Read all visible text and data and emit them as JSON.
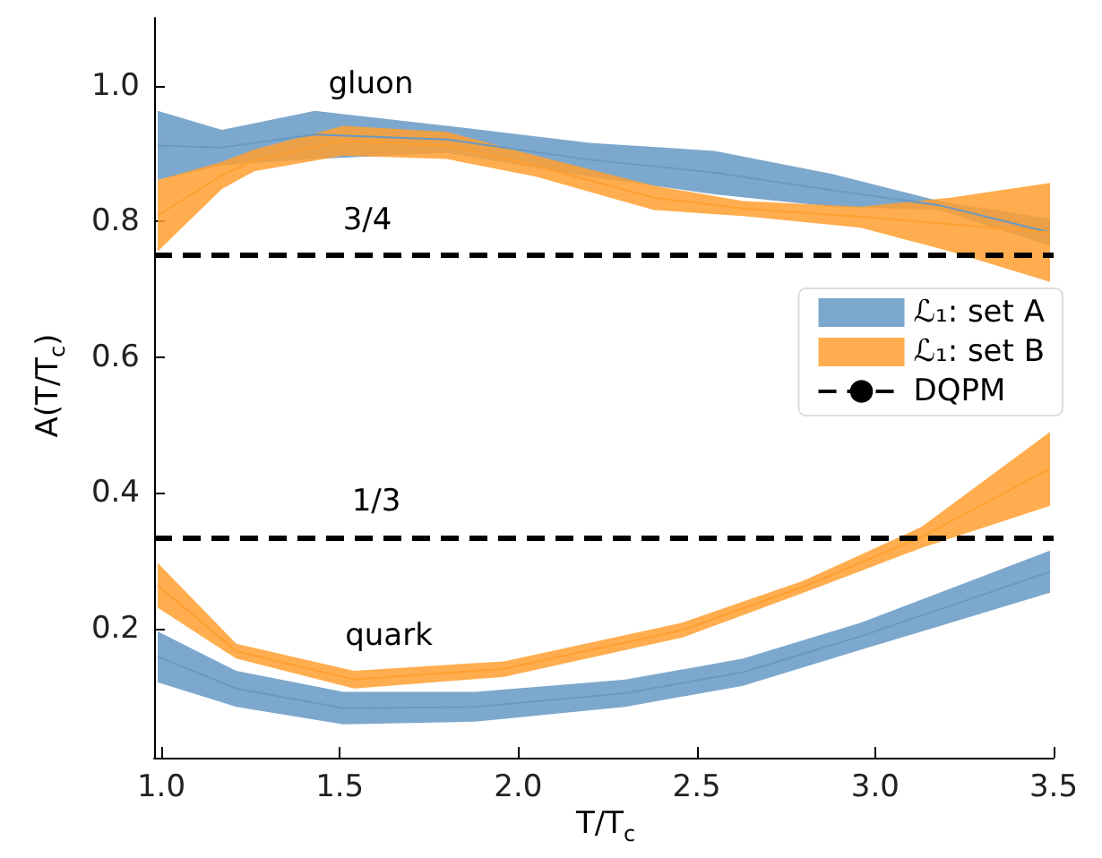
{
  "chart_data": {
    "type": "line",
    "xlabel": "T/T$_{c}$",
    "ylabel": "A(T/T$_{c}$)",
    "xlim": [
      0.98,
      3.5
    ],
    "ylim": [
      0.01,
      1.1
    ],
    "xticks": [
      {
        "value": 1,
        "label": "1.0"
      },
      1.5,
      {
        "value": 2,
        "label": "2.0"
      },
      2.5,
      {
        "value": 3,
        "label": "3.0"
      },
      3.5
    ],
    "yticks": [
      0.2,
      0.4,
      0.6,
      0.8,
      {
        "value": 1,
        "label": "1.0"
      }
    ],
    "grid": false,
    "legend": "right",
    "series": [
      {
        "name": "ℒ₁: set A",
        "color": "#6699c4",
        "x": [
          0.99,
          1.17,
          1.43,
          1.8,
          2.2,
          2.55,
          2.88,
          3.18,
          3.49
        ],
        "lower": [
          0.861,
          0.883,
          0.892,
          0.901,
          0.866,
          0.84,
          0.822,
          0.817,
          0.764
        ],
        "upper": [
          0.963,
          0.935,
          0.963,
          0.941,
          0.916,
          0.904,
          0.87,
          0.83,
          0.804
        ],
        "values": [
          0.912,
          0.909,
          0.928,
          0.921,
          0.891,
          0.872,
          0.846,
          0.824,
          0.784
        ]
      },
      {
        "name": "ℒ₁: set B",
        "color": "#ff9f2f",
        "x": [
          0.99,
          1.17,
          1.26,
          1.51,
          1.8,
          2.05,
          2.38,
          2.63,
          2.96,
          3.21,
          3.49
        ],
        "lower": [
          0.756,
          0.848,
          0.874,
          0.897,
          0.892,
          0.866,
          0.817,
          0.808,
          0.791,
          0.756,
          0.711
        ],
        "upper": [
          0.861,
          0.888,
          0.906,
          0.941,
          0.932,
          0.897,
          0.853,
          0.83,
          0.822,
          0.835,
          0.857
        ],
        "values": [
          0.809,
          0.868,
          0.89,
          0.919,
          0.912,
          0.882,
          0.835,
          0.819,
          0.807,
          0.796,
          0.784
        ]
      },
      {
        "color": "#6699c4",
        "x": [
          0.99,
          1.21,
          1.51,
          1.88,
          2.3,
          2.63,
          2.96,
          3.49
        ],
        "lower": [
          0.121,
          0.085,
          0.059,
          0.063,
          0.085,
          0.116,
          0.169,
          0.253
        ],
        "upper": [
          0.196,
          0.138,
          0.107,
          0.107,
          0.125,
          0.156,
          0.209,
          0.315
        ],
        "values": [
          0.159,
          0.112,
          0.083,
          0.085,
          0.105,
          0.136,
          0.189,
          0.284
        ]
      },
      {
        "color": "#ff9f2f",
        "x": [
          0.99,
          1.21,
          1.54,
          1.96,
          2.46,
          2.8,
          3.13,
          3.49
        ],
        "lower": [
          0.231,
          0.156,
          0.112,
          0.129,
          0.187,
          0.253,
          0.319,
          0.381
        ],
        "upper": [
          0.297,
          0.178,
          0.138,
          0.152,
          0.209,
          0.271,
          0.35,
          0.49
        ],
        "values": [
          0.264,
          0.167,
          0.125,
          0.141,
          0.198,
          0.262,
          0.335,
          0.436
        ]
      }
    ],
    "ref_lines": [
      {
        "axis": "y",
        "value": 0.75,
        "label": "DQPM",
        "color": "#000000",
        "line_style": "dashed"
      },
      {
        "axis": "y",
        "value": 0.3333,
        "color": "#000000",
        "line_style": "dashed"
      }
    ],
    "annotations": [
      "gluon",
      "3/4",
      "1/3",
      "quark"
    ]
  }
}
